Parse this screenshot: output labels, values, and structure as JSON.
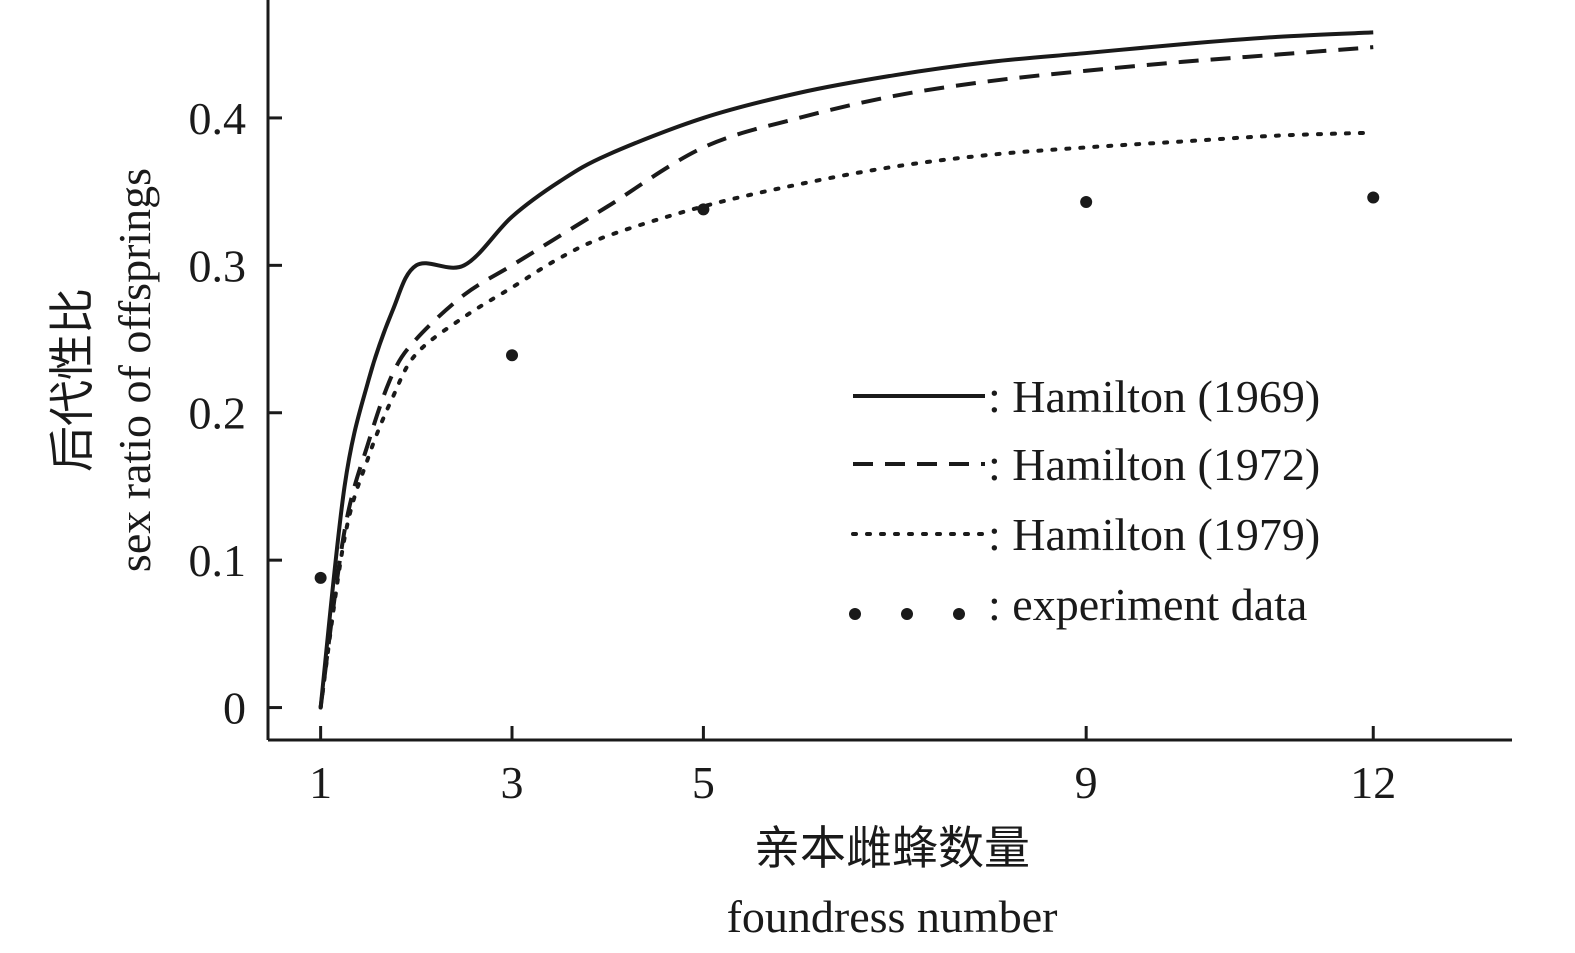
{
  "chart_data": {
    "type": "line",
    "xlabel_zh": "亲本雌蜂数量",
    "xlabel_en": "foundress number",
    "ylabel_zh": "后代性比",
    "ylabel_en": "sex ratio of offsprings",
    "x_ticks": [
      1,
      3,
      5,
      9,
      12
    ],
    "x_tick_labels": [
      "1",
      "3",
      "5",
      "9",
      "12"
    ],
    "y_ticks": [
      0,
      0.1,
      0.2,
      0.3,
      0.4
    ],
    "y_tick_labels": [
      "0",
      "0.1",
      "0.2",
      "0.3",
      "0.4"
    ],
    "xlim": [
      0.45,
      13.45
    ],
    "ylim": [
      -0.022,
      0.48
    ],
    "grid": false,
    "legend_position": "center-right",
    "series": [
      {
        "name": ": Hamilton (1969)",
        "style": "solid",
        "x": [
          1,
          1.25,
          1.5,
          1.75,
          2,
          2.5,
          3,
          3.5,
          4,
          5,
          6,
          7,
          8,
          9,
          10,
          11,
          12
        ],
        "y": [
          0,
          0.15,
          0.222,
          0.269,
          0.3,
          0.3,
          0.333,
          0.357,
          0.375,
          0.4,
          0.417,
          0.429,
          0.438,
          0.444,
          0.45,
          0.455,
          0.458
        ]
      },
      {
        "name": ": Hamilton (1972)",
        "style": "dashed",
        "x": [
          1,
          1.25,
          1.5,
          1.75,
          2,
          2.5,
          3,
          3.5,
          4,
          5,
          6,
          7,
          8,
          9,
          10,
          11,
          12
        ],
        "y": [
          0,
          0.12,
          0.18,
          0.226,
          0.25,
          0.28,
          0.3,
          0.32,
          0.34,
          0.38,
          0.4,
          0.415,
          0.425,
          0.432,
          0.438,
          0.443,
          0.448
        ]
      },
      {
        "name": ": Hamilton (1979)",
        "style": "dotted",
        "x": [
          1,
          1.25,
          1.5,
          1.75,
          2,
          2.5,
          3,
          3.5,
          4,
          5,
          6,
          7,
          8,
          9,
          10,
          11,
          12
        ],
        "y": [
          0,
          0.115,
          0.17,
          0.21,
          0.24,
          0.265,
          0.285,
          0.305,
          0.32,
          0.34,
          0.355,
          0.367,
          0.375,
          0.38,
          0.384,
          0.388,
          0.39
        ]
      },
      {
        "name": ": experiment data",
        "style": "points",
        "x": [
          1,
          3,
          5,
          9,
          12
        ],
        "y": [
          0.088,
          0.239,
          0.338,
          0.343,
          0.346
        ]
      }
    ]
  }
}
